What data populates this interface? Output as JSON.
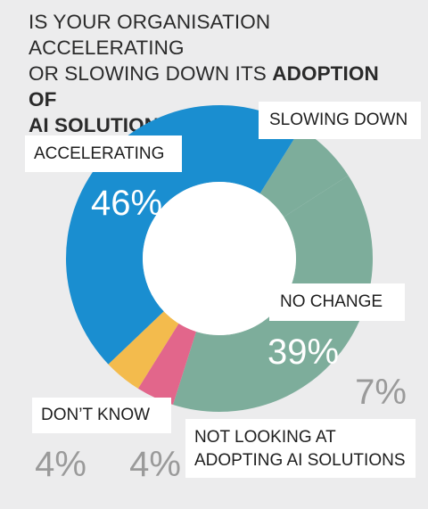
{
  "title": {
    "line1": "IS YOUR ORGANISATION ACCELERATING",
    "line2_normal": "OR SLOWING DOWN ITS ",
    "line2_bold": "ADOPTION OF",
    "line3_bold": "AI SOLUTIONS",
    "line3_end": "?"
  },
  "chart_data": {
    "type": "pie",
    "donut": true,
    "categories": [
      "Accelerating",
      "Slowing down",
      "No change",
      "Not looking at adopting AI solutions",
      "Don't know"
    ],
    "labels": {
      "accelerating": "ACCELERATING",
      "slowing_down": "SLOWING DOWN",
      "no_change": "NO CHANGE",
      "not_looking_line1": "NOT LOOKING AT",
      "not_looking_line2": "ADOPTING AI SOLUTIONS",
      "dont_know": "DON’T KNOW"
    },
    "percent_labels": {
      "accelerating": "46%",
      "slowing_down": "7%",
      "no_change": "39%",
      "not_looking": "4%",
      "dont_know": "4%"
    },
    "values": [
      46,
      7,
      39,
      4,
      4
    ],
    "colors": {
      "accelerating": "#1a8ed0",
      "slowing_down": "#7dad9b",
      "no_change": "#7dad9b",
      "not_looking": "#e2668b",
      "dont_know": "#f3bb4d",
      "background": "#ececed"
    }
  }
}
